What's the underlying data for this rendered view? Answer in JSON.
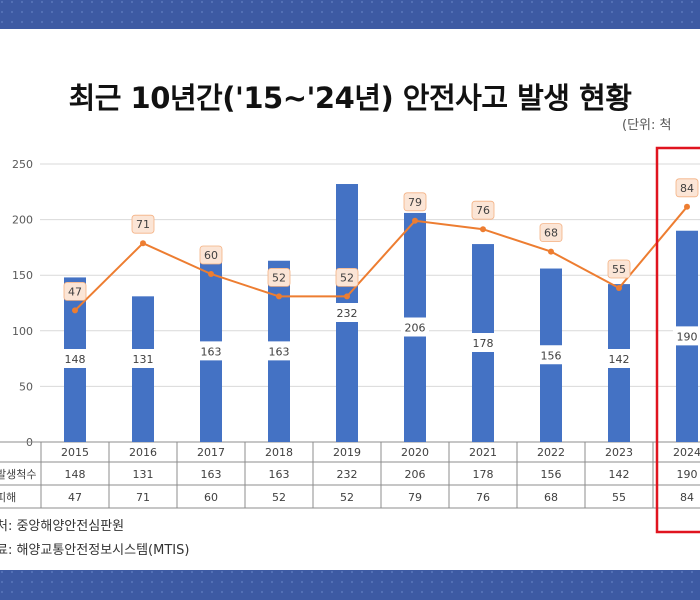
{
  "title": "최근 10년간('15~'24년) 안전사고 발생 현황",
  "unit_note": "(단위: 척",
  "sources": [
    "처: 중앙해양안전심판원",
    "료: 해양교통안전정보시스템(MTIS)"
  ],
  "table_rows": [
    {
      "label": "발생척수",
      "series": 0
    },
    {
      "label": "피해",
      "series": 1
    }
  ],
  "colors": {
    "bar": "#4472c4",
    "line": "#ed7d31",
    "highlight": "#e0141f",
    "background": "#3d5aa3"
  },
  "chart_data": {
    "type": "bar",
    "categories": [
      "2015",
      "2016",
      "2017",
      "2018",
      "2019",
      "2020",
      "2021",
      "2022",
      "2023",
      "2024"
    ],
    "series": [
      {
        "name": "발생척수",
        "type": "bar",
        "values": [
          148,
          131,
          163,
          163,
          232,
          206,
          178,
          156,
          142,
          190
        ]
      },
      {
        "name": "피해",
        "type": "line",
        "values": [
          47,
          71,
          60,
          52,
          52,
          79,
          76,
          68,
          55,
          84
        ]
      }
    ],
    "title": "최근 10년간('15~'24년) 안전사고 발생 현황",
    "xlabel": "",
    "ylabel": "",
    "ylim": [
      0,
      250
    ],
    "yticks": [
      0,
      50,
      100,
      150,
      200,
      250
    ],
    "line_scale": [
      0,
      100
    ],
    "highlight_category": "2024",
    "grid": true,
    "legend": "none"
  }
}
